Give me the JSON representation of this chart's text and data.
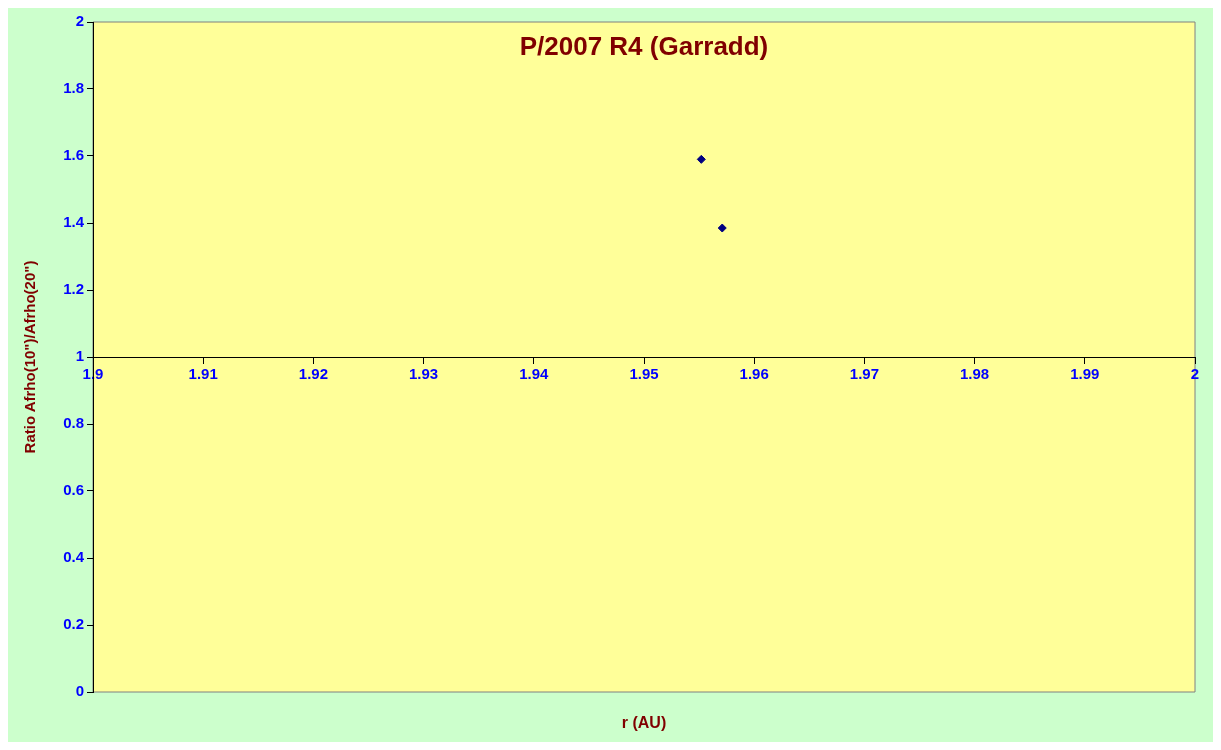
{
  "chart_data": {
    "type": "scatter",
    "title": "P/2007 R4 (Garradd)",
    "xlabel": "r (AU)",
    "ylabel": "Ratio Afrho(10\")/Afrho(20\")",
    "series": [
      {
        "color": "#000080",
        "x": [
          1.9552,
          1.9571
        ],
        "values": [
          1.59,
          1.385
        ]
      }
    ],
    "xlim": [
      1.9,
      2
    ],
    "xticks": [
      1.9,
      1.91,
      1.92,
      1.93,
      1.94,
      1.95,
      1.96,
      1.97,
      1.98,
      1.99,
      2
    ],
    "ylim": [
      0,
      2
    ],
    "yticks": [
      0,
      0.2,
      0.4,
      0.6,
      0.8,
      1,
      1.2,
      1.4,
      1.6,
      1.8,
      2
    ],
    "marker": "diamond",
    "grid": false,
    "legend": false
  }
}
